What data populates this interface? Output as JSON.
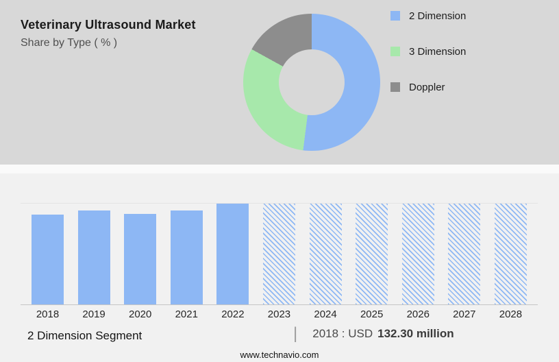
{
  "header": {
    "title": "Veterinary Ultrasound Market",
    "subtitle": "Share by Type ( % )"
  },
  "colors": {
    "top_bg": "#d8d8d8",
    "bottom_bg": "#f1f1f1",
    "blue": "#8db7f4",
    "green": "#a7e8ab",
    "gray": "#8d8d8d"
  },
  "chart_data": [
    {
      "type": "pie",
      "donut": true,
      "title": "Share by Type ( % )",
      "labels": [
        "2 Dimension",
        "3 Dimension",
        "Doppler"
      ],
      "values": [
        52,
        31,
        17
      ],
      "colors": [
        "#8db7f4",
        "#a7e8ab",
        "#8d8d8d"
      ],
      "legend_position": "right"
    },
    {
      "type": "bar",
      "categories": [
        "2018",
        "2019",
        "2020",
        "2021",
        "2022",
        "2023",
        "2024",
        "2025",
        "2026",
        "2027",
        "2028"
      ],
      "values": [
        89,
        93,
        90,
        93,
        100,
        100,
        100,
        100,
        100,
        100,
        100
      ],
      "hatched_from": "2023",
      "ylim": [
        0,
        100
      ],
      "xlabel": "",
      "ylabel": "",
      "title": "",
      "grid": false,
      "note": "values are relative bar heights; 2023-2028 shown hatched (forecast)"
    }
  ],
  "annotation": {
    "segment": "2 Dimension Segment",
    "separator": "|",
    "prefix": "2018 : USD",
    "value": "132.30 million"
  },
  "footer": {
    "url": "www.technavio.com"
  }
}
